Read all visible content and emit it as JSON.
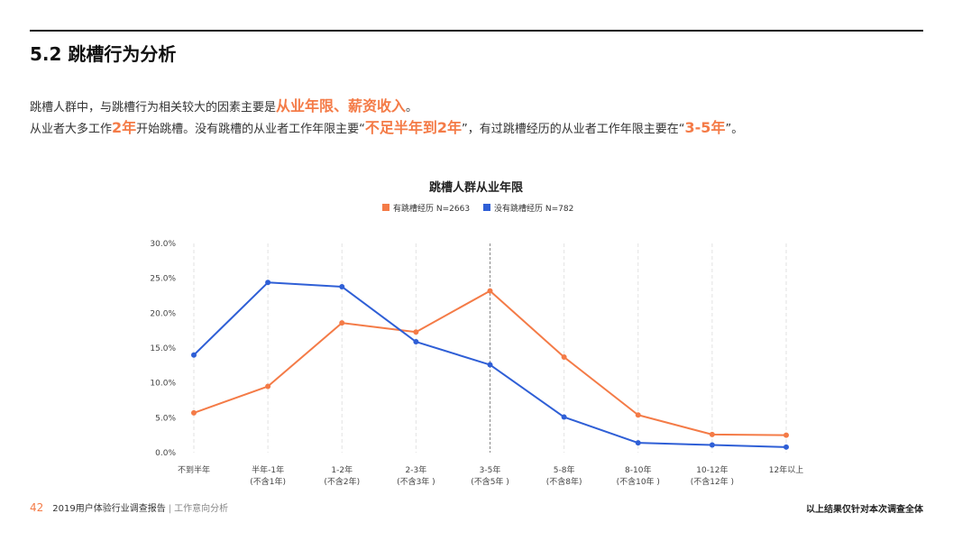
{
  "header": {
    "title": "5.2 跳槽行为分析"
  },
  "summary": {
    "line1_a": "跳槽人群中，与跳槽行为相关较大的因素主要是",
    "line1_hl": "从业年限、薪资收入",
    "line1_b": "。",
    "line2_a": "从业者大多工作",
    "line2_hl1": "2年",
    "line2_b": "开始跳槽。没有跳槽的从业者工作年限主要“",
    "line2_hl2": "不足半年到2年",
    "line2_c": "”，有过跳槽经历的从业者工作年限主要在“",
    "line2_hl3": "3-5年",
    "line2_d": "”。"
  },
  "colors": {
    "accent": "#f47b47",
    "blue": "#2f5fd6",
    "orange": "#f47b47"
  },
  "chart_data": {
    "type": "line",
    "title": "跳槽人群从业年限",
    "categories": [
      [
        "不到半年"
      ],
      [
        "半年-1年",
        "(不含1年)"
      ],
      [
        "1-2年",
        "(不含2年)"
      ],
      [
        "2-3年",
        "(不含3年 )"
      ],
      [
        "3-5年",
        "(不含5年 )"
      ],
      [
        "5-8年",
        "(不含8年)"
      ],
      [
        "8-10年",
        "(不含10年 )"
      ],
      [
        "10-12年",
        "(不含12年 )"
      ],
      [
        "12年以上"
      ]
    ],
    "series": [
      {
        "name": "有跳槽经历  N=2663",
        "color": "#f47b47",
        "values": [
          5.7,
          9.5,
          18.6,
          17.3,
          23.2,
          13.7,
          5.4,
          2.6,
          2.5
        ]
      },
      {
        "name": "没有跳槽经历  N=782",
        "color": "#2f5fd6",
        "values": [
          14.0,
          24.4,
          23.8,
          15.9,
          12.6,
          5.1,
          1.4,
          1.1,
          0.8
        ]
      }
    ],
    "yticks": [
      "0.0%",
      "5.0%",
      "10.0%",
      "15.0%",
      "20.0%",
      "25.0%",
      "30.0%"
    ],
    "ylim": [
      0,
      30
    ],
    "grid": "vertical-dashed",
    "highlight_category": "3-5年",
    "legend": "top-center"
  },
  "footer": {
    "page": "42",
    "report": "2019用户体验行业调查报告",
    "section": "工作意向分析",
    "note": "以上结果仅针对本次调查全体"
  }
}
